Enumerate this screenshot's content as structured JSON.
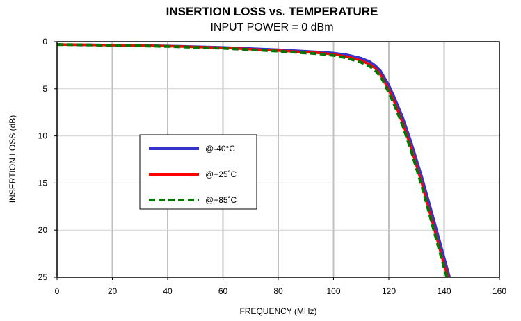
{
  "chart_data": {
    "type": "line",
    "title": "INSERTION LOSS vs. TEMPERATURE",
    "subtitle": "INPUT POWER = 0 dBm",
    "xlabel": "FREQUENCY (MHz)",
    "ylabel": "INSERTION LOSS (dB)",
    "xlim": [
      0,
      160
    ],
    "ylim": [
      0,
      25
    ],
    "y_inverted": true,
    "x_ticks": [
      "0",
      "20",
      "40",
      "60",
      "80",
      "100",
      "120",
      "140",
      "160"
    ],
    "y_ticks": [
      "0",
      "5",
      "10",
      "15",
      "20",
      "25"
    ],
    "grid": {
      "vertical_major": true,
      "horizontal": true
    },
    "legend": {
      "position": "center-left"
    },
    "series": [
      {
        "name": "@-40°C",
        "color": "#3333cc",
        "style": "solid",
        "x": [
          0,
          10,
          20,
          40,
          60,
          80,
          95,
          100,
          105,
          110,
          113,
          115,
          117,
          118,
          120,
          122,
          125,
          128,
          132,
          136,
          140,
          142
        ],
        "y": [
          0.3,
          0.33,
          0.36,
          0.45,
          0.6,
          0.85,
          1.1,
          1.2,
          1.4,
          1.75,
          2.1,
          2.5,
          3.1,
          3.6,
          4.6,
          5.9,
          8.0,
          10.6,
          14.4,
          18.6,
          22.9,
          25.0
        ]
      },
      {
        "name": "@+25˚C",
        "color": "#ff0000",
        "style": "solid",
        "x": [
          0,
          10,
          20,
          40,
          60,
          80,
          95,
          100,
          105,
          110,
          113,
          115,
          117,
          118,
          120,
          122,
          125,
          128,
          132,
          136,
          140,
          141.5
        ],
        "y": [
          0.3,
          0.33,
          0.37,
          0.47,
          0.65,
          0.95,
          1.2,
          1.35,
          1.6,
          2.0,
          2.4,
          2.8,
          3.5,
          4.0,
          5.1,
          6.4,
          8.6,
          11.2,
          15.1,
          19.4,
          23.7,
          25.0
        ]
      },
      {
        "name": "@+85˚C",
        "color": "#007700",
        "style": "dashed",
        "x": [
          0,
          10,
          20,
          40,
          60,
          80,
          95,
          100,
          105,
          110,
          113,
          115,
          117,
          118,
          120,
          122,
          125,
          128,
          132,
          136,
          140,
          141
        ],
        "y": [
          0.3,
          0.34,
          0.38,
          0.5,
          0.7,
          1.0,
          1.3,
          1.45,
          1.75,
          2.2,
          2.6,
          3.0,
          3.7,
          4.2,
          5.4,
          6.7,
          8.9,
          11.5,
          15.4,
          19.7,
          24.0,
          25.0
        ]
      }
    ]
  }
}
